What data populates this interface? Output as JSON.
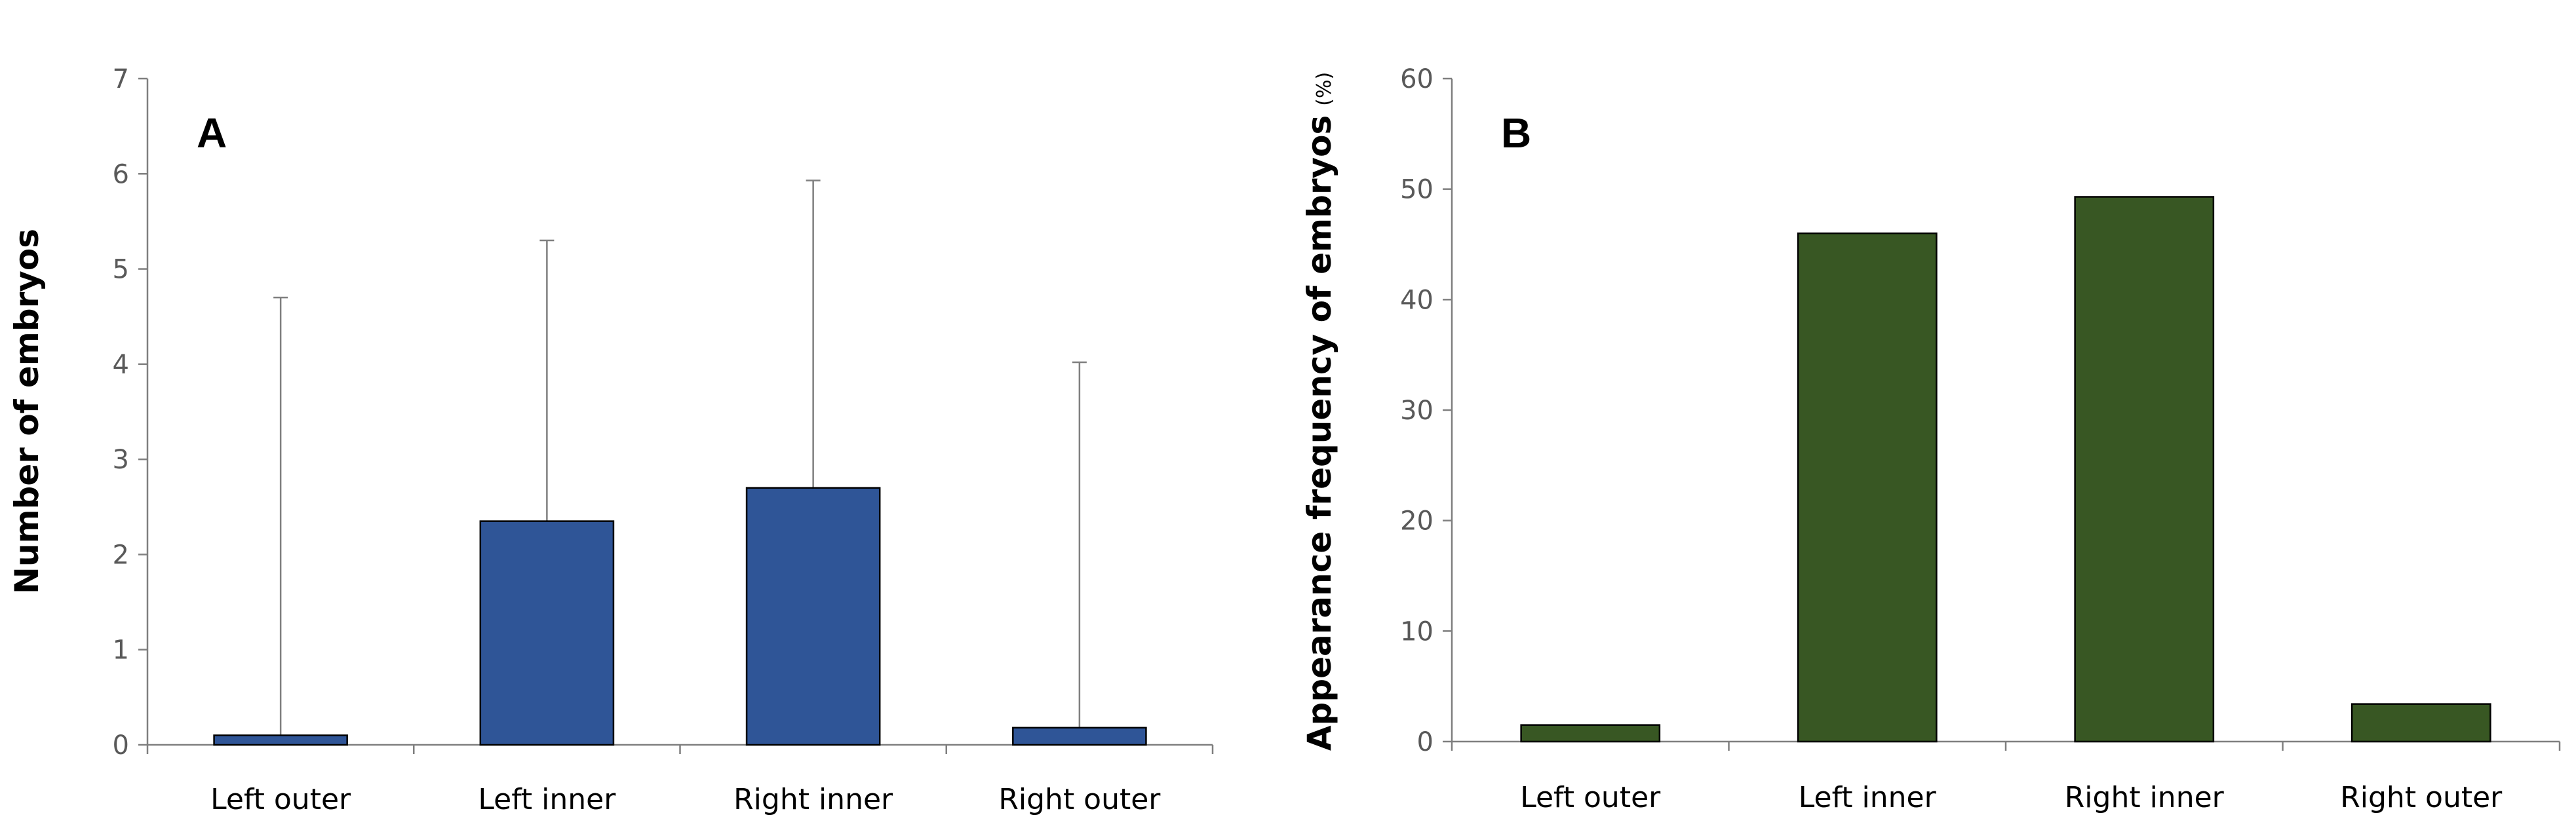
{
  "chart_data": [
    {
      "type": "bar",
      "panel": "A",
      "categories": [
        "Left outer",
        "Left inner",
        "Right inner",
        "Right outer"
      ],
      "values": [
        0.1,
        2.35,
        2.7,
        0.18
      ],
      "error_upper": [
        4.7,
        5.3,
        5.93,
        4.02
      ],
      "ylabel": "Number of embryos",
      "ylim": [
        0,
        7
      ],
      "yticks": [
        0,
        1,
        2,
        3,
        4,
        5,
        6,
        7
      ],
      "bar_color": "#2f5597",
      "grid": false
    },
    {
      "type": "bar",
      "panel": "B",
      "categories": [
        "Left outer",
        "Left inner",
        "Right inner",
        "Right outer"
      ],
      "values": [
        1.5,
        46,
        49.3,
        3.4
      ],
      "ylabel": "Appearance frequency of embryos",
      "ylabel_unit": "(%)",
      "ylim": [
        0,
        60
      ],
      "yticks": [
        0,
        10,
        20,
        30,
        40,
        50,
        60
      ],
      "bar_color": "#385723",
      "grid": false
    }
  ]
}
